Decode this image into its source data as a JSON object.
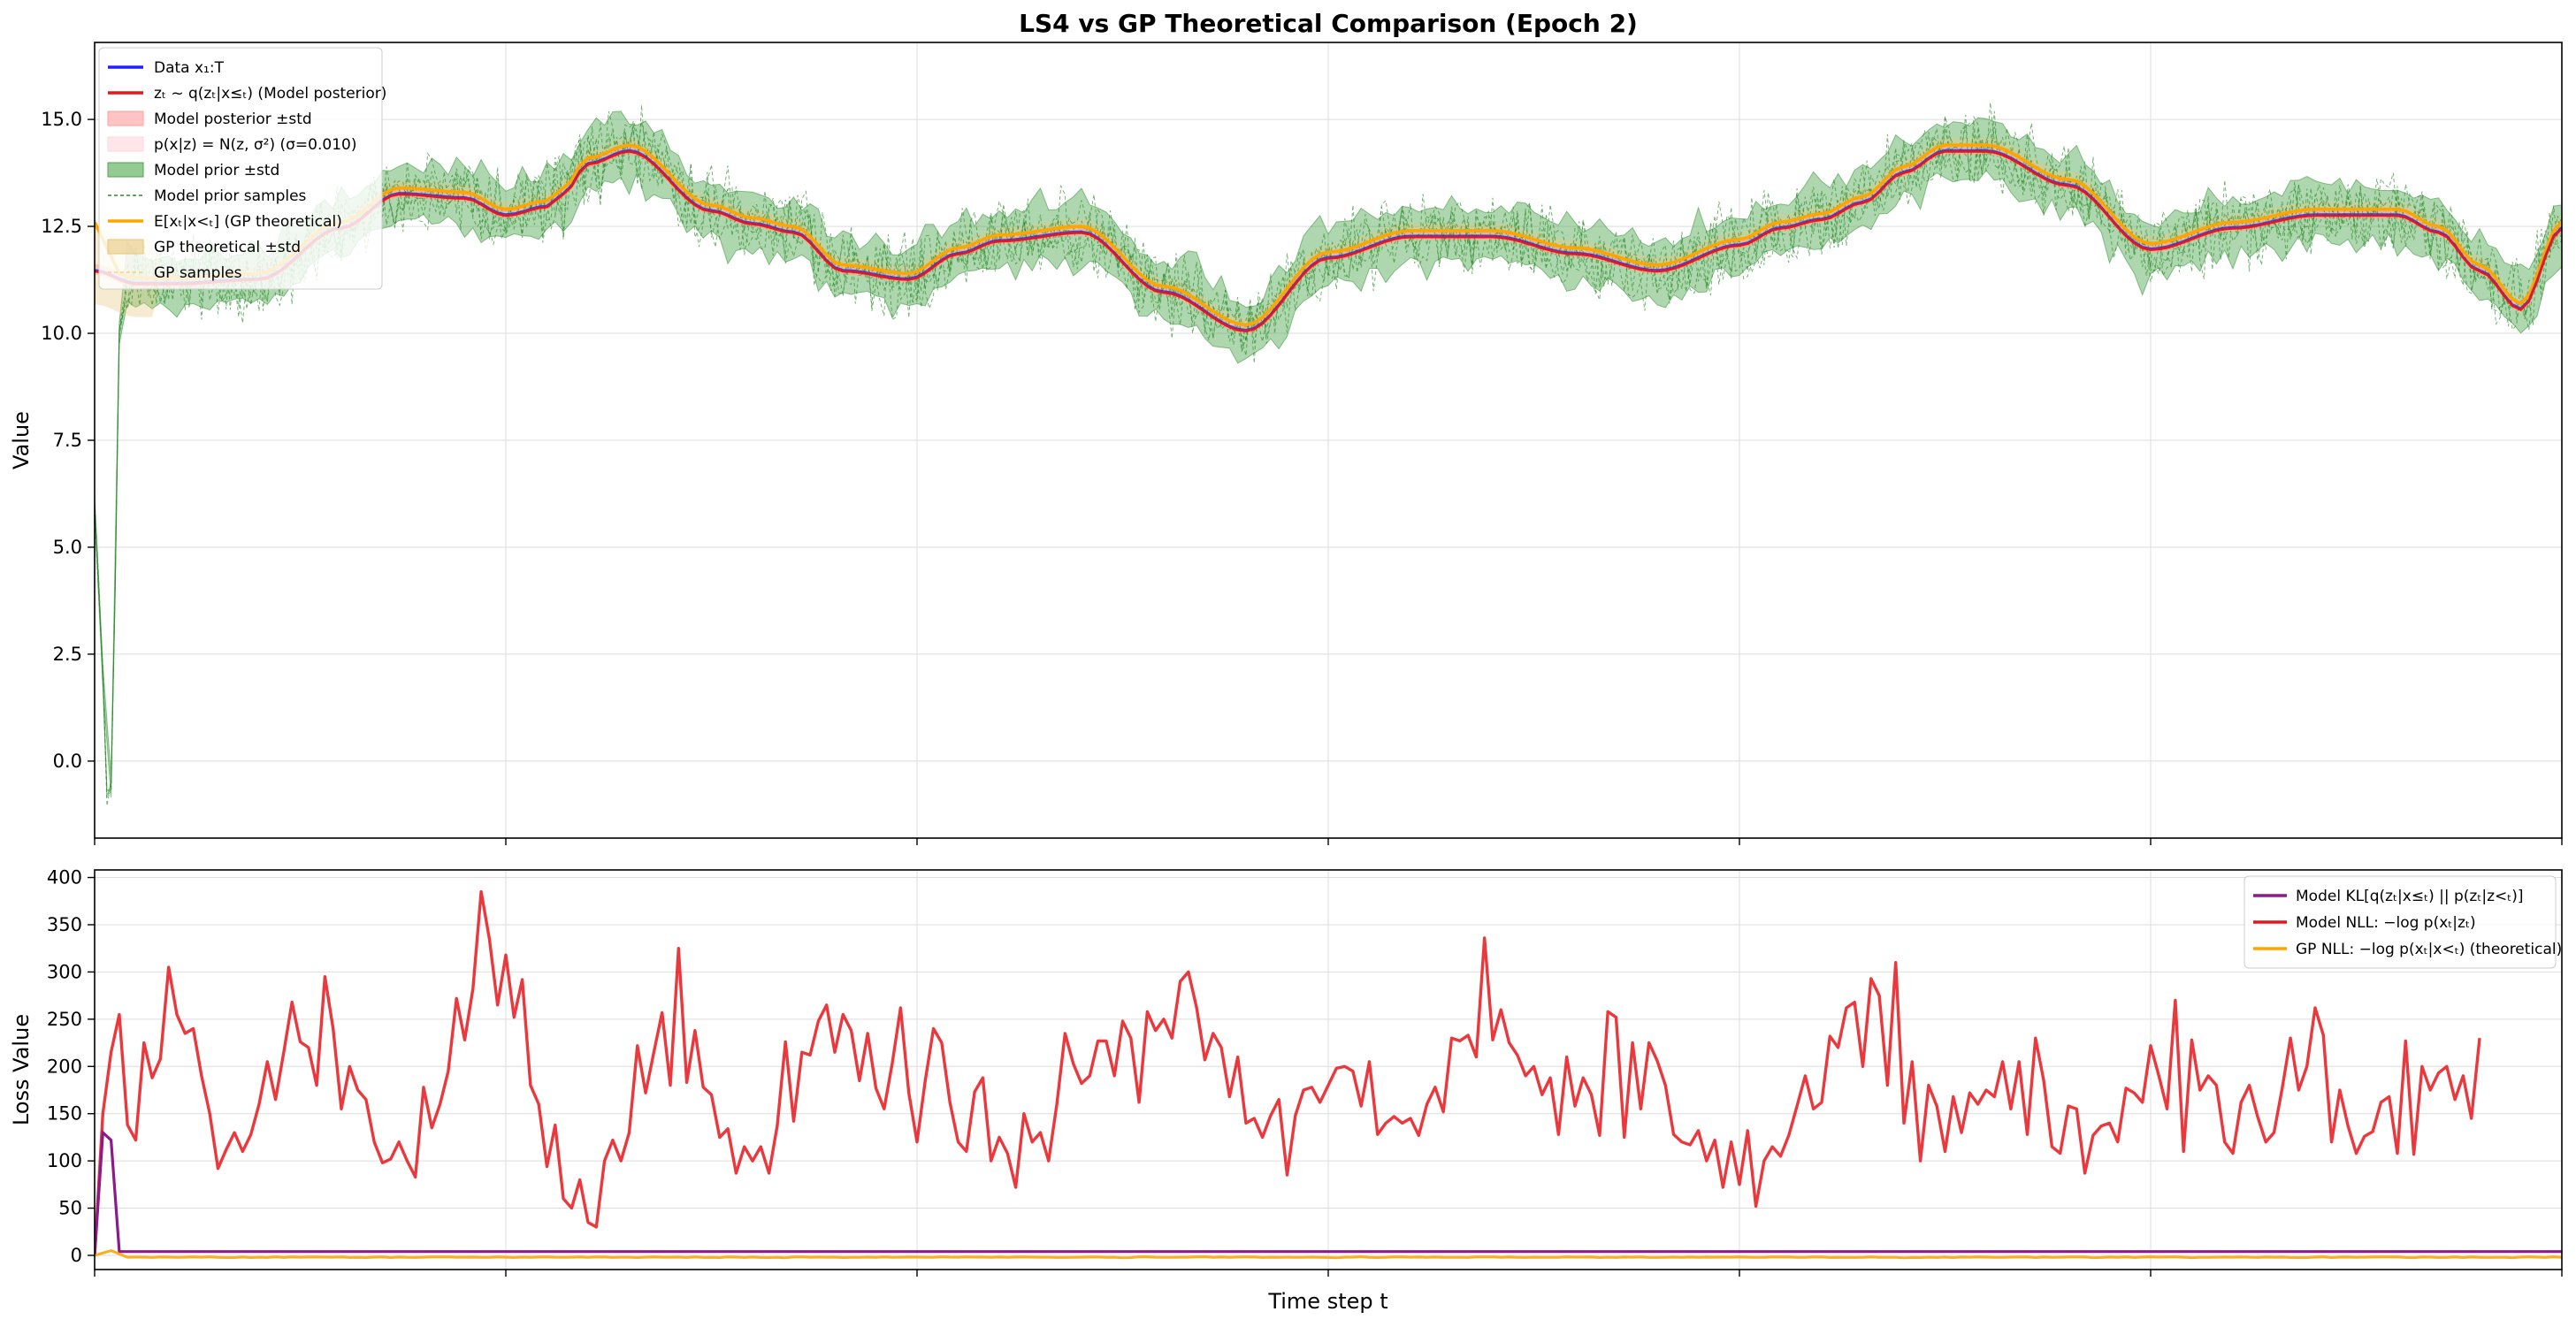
{
  "figure_title": "LS4 vs GP Theoretical Comparison (Epoch 2)",
  "colors": {
    "data": "#1f1fff",
    "posterior": "#e8151b",
    "posterior_band": "#ff9c9c",
    "likelihood_band": "#ffd6dc",
    "prior": "#2a8a2a",
    "prior_band": "#4da64d",
    "gp": "#ffa500",
    "gp_band": "#e6c77a",
    "kl": "#8b1a8b",
    "nll": "#e8151b",
    "gp_nll": "#ffa500",
    "grid": "#dddddd"
  },
  "chart_data": [
    {
      "type": "line",
      "title": "LS4 vs GP Theoretical Comparison (Epoch 2)",
      "xlabel": "",
      "ylabel": "Value",
      "xlim": [
        0,
        300
      ],
      "ylim": [
        -1.8,
        16.8
      ],
      "yticks": [
        0.0,
        2.5,
        5.0,
        7.5,
        10.0,
        12.5,
        15.0
      ],
      "ytick_labels": [
        "0.0",
        "2.5",
        "5.0",
        "7.5",
        "10.0",
        "12.5",
        "15.0"
      ],
      "xticks": [
        0,
        50,
        100,
        150,
        200,
        250,
        300
      ],
      "grid": true,
      "legend_position": "upper-left",
      "legend": [
        {
          "label": "Data x₁:T",
          "kind": "line",
          "color": "#1f1fff"
        },
        {
          "label": "zₜ ~ q(zₜ|x≤ₜ) (Model posterior)",
          "kind": "line",
          "color": "#e8151b"
        },
        {
          "label": "Model posterior ±std",
          "kind": "patch",
          "color": "#ff9c9c"
        },
        {
          "label": "p(x|z) = N(z, σ²) (σ=0.010)",
          "kind": "patch",
          "color": "#ffd6dc"
        },
        {
          "label": "Model prior ±std",
          "kind": "patch",
          "color": "#4da64d"
        },
        {
          "label": "Model prior samples",
          "kind": "dashed",
          "color": "#2a8a2a"
        },
        {
          "label": "E[xₜ|x<ₜ] (GP theoretical)",
          "kind": "line",
          "color": "#ffa500"
        },
        {
          "label": "GP theoretical ±std",
          "kind": "patch",
          "color": "#e6c77a"
        },
        {
          "label": "GP samples",
          "kind": "dashed-light",
          "color": "#ffd27a"
        }
      ],
      "trend_knots": {
        "x": [
          0,
          5,
          10,
          20,
          30,
          37,
          45,
          50,
          55,
          57,
          60,
          65,
          75,
          80,
          85,
          91,
          99,
          105,
          110,
          120,
          130,
          140,
          150,
          160,
          170,
          180,
          190,
          200,
          205,
          210,
          215,
          220,
          225,
          230,
          240,
          250,
          260,
          270,
          280,
          285,
          290,
          295,
          300
        ],
        "values": [
          11.5,
          11.2,
          11.2,
          11.3,
          12.5,
          13.3,
          13.2,
          12.8,
          13.0,
          13.3,
          14.0,
          14.3,
          12.9,
          12.6,
          12.4,
          11.5,
          11.3,
          11.9,
          12.2,
          12.4,
          11.0,
          10.1,
          11.8,
          12.3,
          12.3,
          11.9,
          11.5,
          12.1,
          12.5,
          12.7,
          13.1,
          13.8,
          14.3,
          14.3,
          13.5,
          12.0,
          12.5,
          12.8,
          12.8,
          12.4,
          11.5,
          10.6,
          12.5
        ]
      },
      "initial_transient": {
        "x": [
          0,
          1,
          1.5,
          2,
          2.5,
          3,
          4
        ],
        "values": [
          6.0,
          2.0,
          -0.8,
          -0.6,
          4.0,
          10.0,
          11.2
        ]
      }
    },
    {
      "type": "line",
      "title": "",
      "xlabel": "Time step t",
      "ylabel": "Loss Value",
      "xlim": [
        0,
        300
      ],
      "ylim": [
        -15,
        408
      ],
      "yticks": [
        0,
        50,
        100,
        150,
        200,
        250,
        300,
        350,
        400
      ],
      "ytick_labels": [
        "0",
        "50",
        "100",
        "150",
        "200",
        "250",
        "300",
        "350",
        "400"
      ],
      "xticks": [
        0,
        50,
        100,
        150,
        200,
        250,
        300
      ],
      "grid": true,
      "legend_position": "upper-right",
      "legend": [
        {
          "label": "Model KL[q(zₜ|x≤ₜ) || p(zₜ|z<ₜ)]",
          "kind": "line",
          "color": "#8b1a8b"
        },
        {
          "label": "Model NLL: −log p(xₜ|zₜ)",
          "kind": "line",
          "color": "#e8151b"
        },
        {
          "label": "GP NLL: −log p(xₜ|x<ₜ) (theoretical)",
          "kind": "line",
          "color": "#ffa500"
        }
      ],
      "series": [
        {
          "name": "Model KL[q(zₜ|x≤ₜ) || p(zₜ|z<ₜ)]",
          "x": [
            0,
            1,
            2,
            3,
            300
          ],
          "values": [
            0,
            130,
            122,
            4,
            4
          ]
        },
        {
          "name": "Model NLL: −log p(xₜ|zₜ)",
          "x_start": 0,
          "x_step": 1,
          "values": [
            0,
            150,
            215,
            255,
            138,
            122,
            225,
            188,
            208,
            305,
            255,
            235,
            240,
            190,
            150,
            92,
            112,
            130,
            110,
            128,
            160,
            205,
            165,
            215,
            268,
            226,
            220,
            180,
            295,
            240,
            155,
            200,
            175,
            165,
            120,
            98,
            102,
            120,
            100,
            83,
            178,
            135,
            160,
            195,
            272,
            228,
            282,
            385,
            335,
            265,
            318,
            252,
            292,
            180,
            160,
            94,
            138,
            60,
            50,
            80,
            35,
            30,
            100,
            122,
            100,
            130,
            222,
            172,
            215,
            257,
            180,
            325,
            183,
            238,
            178,
            170,
            125,
            134,
            87,
            115,
            100,
            115,
            87,
            137,
            226,
            142,
            215,
            212,
            248,
            265,
            215,
            255,
            238,
            185,
            235,
            177,
            155,
            204,
            262,
            172,
            120,
            185,
            240,
            225,
            162,
            120,
            110,
            173,
            188,
            100,
            125,
            108,
            72,
            150,
            120,
            130,
            100,
            160,
            235,
            203,
            182,
            190,
            227,
            227,
            190,
            248,
            230,
            162,
            258,
            238,
            250,
            230,
            290,
            300,
            262,
            207,
            235,
            220,
            168,
            210,
            140,
            145,
            125,
            148,
            165,
            85,
            148,
            175,
            178,
            162,
            180,
            198,
            200,
            195,
            158,
            205,
            128,
            140,
            147,
            140,
            145,
            127,
            160,
            178,
            152,
            230,
            227,
            233,
            210,
            336,
            228,
            260,
            225,
            212,
            190,
            200,
            170,
            188,
            128,
            210,
            158,
            188,
            170,
            127,
            258,
            252,
            125,
            225,
            155,
            225,
            206,
            180,
            128,
            120,
            117,
            132,
            100,
            122,
            72,
            120,
            75,
            132,
            52,
            100,
            115,
            105,
            127,
            158,
            190,
            155,
            162,
            232,
            220,
            262,
            268,
            200,
            293,
            275,
            180,
            310,
            140,
            205,
            100,
            180,
            158,
            110,
            168,
            130,
            172,
            160,
            175,
            168,
            205,
            155,
            205,
            128,
            230,
            185,
            115,
            108,
            158,
            155,
            87,
            127,
            137,
            140,
            120,
            177,
            172,
            162,
            222,
            190,
            155,
            270,
            110,
            228,
            175,
            190,
            180,
            120,
            108,
            162,
            180,
            147,
            120,
            130,
            177,
            230,
            175,
            200,
            262,
            233,
            120,
            175,
            137,
            108,
            126,
            131,
            162,
            168,
            108,
            227,
            107,
            200,
            175,
            193,
            200,
            165,
            190,
            145,
            230
          ]
        },
        {
          "name": "GP NLL: −log p(xₜ|x<ₜ) (theoretical)",
          "x": [
            0,
            2,
            4,
            300
          ],
          "values": [
            0,
            5,
            -2,
            -2
          ]
        }
      ]
    }
  ]
}
